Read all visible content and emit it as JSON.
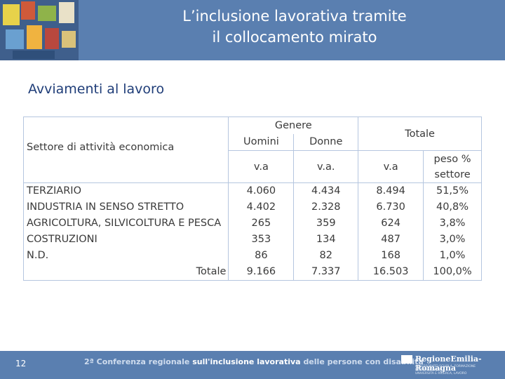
{
  "header": {
    "title_line1": "L’inclusione lavorativa tramite",
    "title_line2": "il collocamento mirato"
  },
  "subtitle": "Avviamenti al lavoro",
  "table": {
    "sector_header": "Settore di attività economica",
    "genere_header": "Genere",
    "uomini_header": "Uomini",
    "donne_header": "Donne",
    "totale_header": "Totale",
    "va_uomini": "v.a",
    "va_donne": "v.a.",
    "va_totale": "v.a",
    "peso_line1": "peso %",
    "peso_line2": "settore",
    "rows": [
      {
        "sector": "TERZIARIO",
        "uomini": "4.060",
        "donne": "4.434",
        "totale": "8.494",
        "peso": "51,5%"
      },
      {
        "sector": "INDUSTRIA IN SENSO STRETTO",
        "uomini": "4.402",
        "donne": "2.328",
        "totale": "6.730",
        "peso": "40,8%"
      },
      {
        "sector": "AGRICOLTURA, SILVICOLTURA E PESCA",
        "uomini": "265",
        "donne": "359",
        "totale": "624",
        "peso": "3,8%"
      },
      {
        "sector": "COSTRUZIONI",
        "uomini": "353",
        "donne": "134",
        "totale": "487",
        "peso": "3,0%"
      },
      {
        "sector": "N.D.",
        "uomini": "86",
        "donne": "82",
        "totale": "168",
        "peso": "1,0%"
      }
    ],
    "total_row": {
      "label": "Totale",
      "uomini": "9.166",
      "donne": "7.337",
      "totale": "16.503",
      "peso": "100,0%"
    }
  },
  "footer": {
    "page_number": "12",
    "conference_part1": "2ª Conferenza regionale",
    "conference_part2": "sull'inclusione lavorativa",
    "conference_part3": "delle persone con disabilità",
    "logo_name": "RegioneEmilia-Romagna",
    "logo_sub1": "ASSESSORATO SCUOLA, FORMAZIONE PROFESSIONALE,",
    "logo_sub2": "UNIVERSITÀ E RICERCA, LAVORO"
  }
}
